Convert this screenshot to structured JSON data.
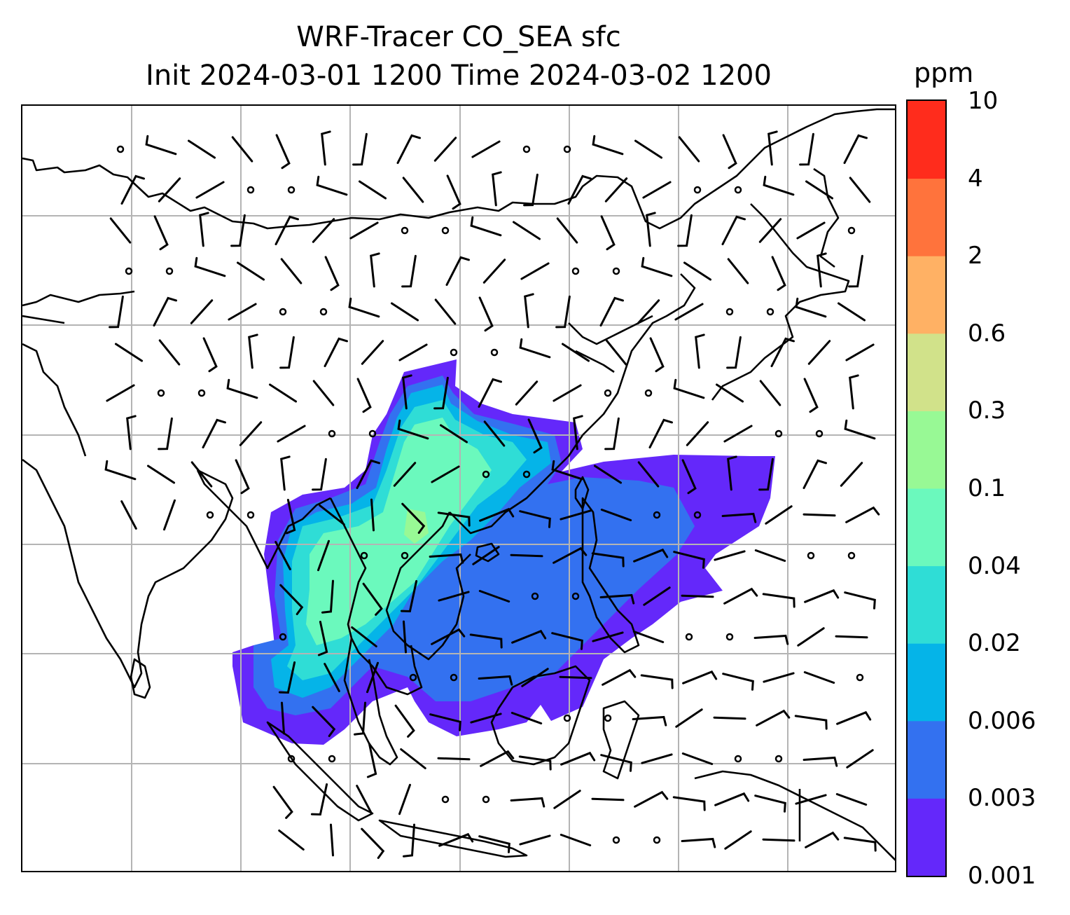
{
  "title": {
    "line1": "WRF-Tracer CO_SEA sfc",
    "line2": "Init 2024-03-01 1200 Time 2024-03-02 1200"
  },
  "colorbar": {
    "units": "ppm",
    "levels": [
      "0.001",
      "0.003",
      "0.006",
      "0.02",
      "0.04",
      "0.1",
      "0.3",
      "0.6",
      "2",
      "4",
      "10"
    ],
    "colors": [
      "#6428fa",
      "#3371f0",
      "#05b4e8",
      "#2fddd6",
      "#6bf9bd",
      "#98f995",
      "#d1e28a",
      "#ffb164",
      "#ff733c",
      "#ff2c1c"
    ]
  },
  "map": {
    "coastline_color": "#000000",
    "gridline_color": "#b4b4b4",
    "wind_barb_color": "#000000",
    "plume_layers": [
      {
        "level": "0.001-0.003",
        "color": "#6428fa"
      },
      {
        "level": "0.003-0.006",
        "color": "#3371f0"
      },
      {
        "level": "0.006-0.02",
        "color": "#05b4e8"
      },
      {
        "level": "0.02-0.04",
        "color": "#2fddd6"
      },
      {
        "level": "0.04-0.1",
        "color": "#6bf9bd"
      },
      {
        "level": "0.1-0.3",
        "color": "#98f995"
      }
    ]
  }
}
